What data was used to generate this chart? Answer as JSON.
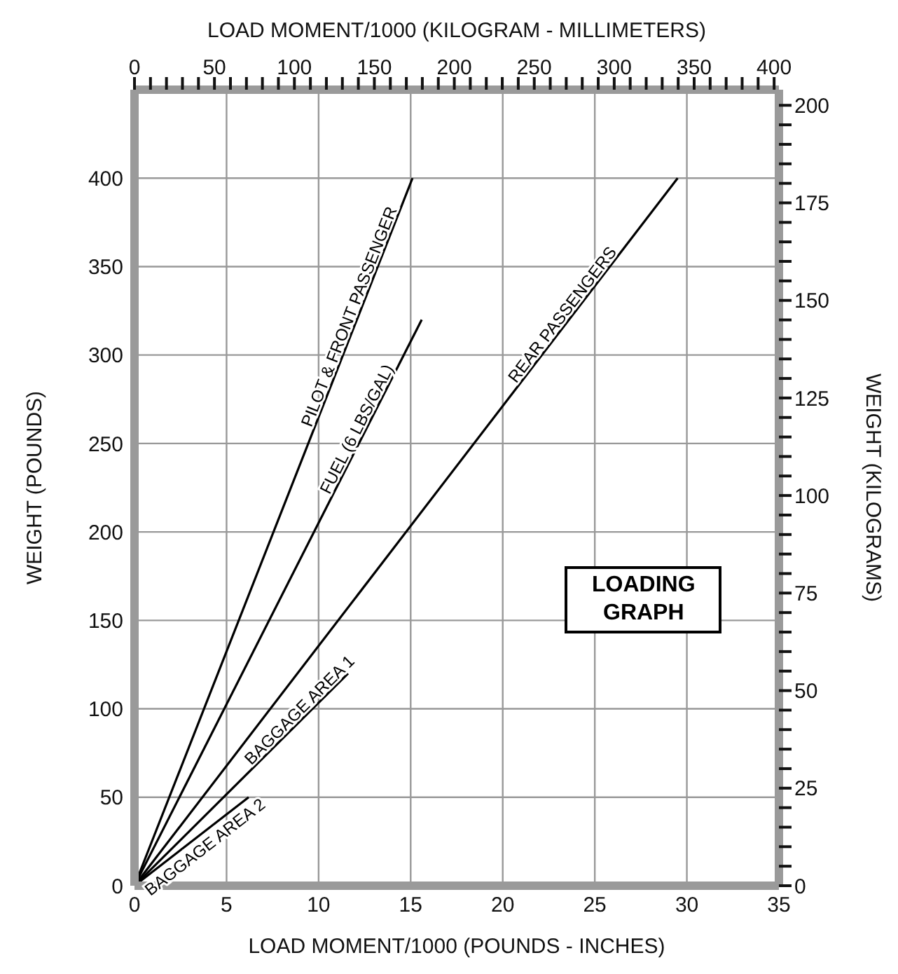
{
  "chart_data": {
    "type": "line",
    "xlabel": "LOAD MOMENT/1000  (POUNDS - INCHES)",
    "ylabel": "WEIGHT (POUNDS)",
    "x2label": "LOAD MOMENT/1000  (KILOGRAM - MILLIMETERS)",
    "y2label": "WEIGHT (KILOGRAMS)",
    "xlim": [
      0,
      35
    ],
    "xticks": [
      0,
      5,
      10,
      15,
      20,
      25,
      30,
      35
    ],
    "ylim": [
      0,
      450
    ],
    "yticks": [
      0,
      50,
      100,
      150,
      200,
      250,
      300,
      350,
      400
    ],
    "x2lim": [
      0,
      403
    ],
    "x2ticks": [
      0,
      {
        "value": 10,
        "label": null
      },
      {
        "value": 20,
        "label": null
      },
      {
        "value": 30,
        "label": null
      },
      {
        "value": 40,
        "label": null
      },
      50,
      {
        "value": 60,
        "label": null
      },
      {
        "value": 70,
        "label": null
      },
      {
        "value": 80,
        "label": null
      },
      {
        "value": 90,
        "label": null
      },
      100,
      {
        "value": 110,
        "label": null
      },
      {
        "value": 120,
        "label": null
      },
      {
        "value": 130,
        "label": null
      },
      {
        "value": 140,
        "label": null
      },
      150,
      {
        "value": 160,
        "label": null
      },
      {
        "value": 170,
        "label": null
      },
      {
        "value": 180,
        "label": null
      },
      {
        "value": 190,
        "label": null
      },
      200,
      {
        "value": 210,
        "label": null
      },
      {
        "value": 220,
        "label": null
      },
      {
        "value": 230,
        "label": null
      },
      {
        "value": 240,
        "label": null
      },
      250,
      {
        "value": 260,
        "label": null
      },
      {
        "value": 270,
        "label": null
      },
      {
        "value": 280,
        "label": null
      },
      {
        "value": 290,
        "label": null
      },
      300,
      {
        "value": 310,
        "label": null
      },
      {
        "value": 320,
        "label": null
      },
      {
        "value": 330,
        "label": null
      },
      {
        "value": 340,
        "label": null
      },
      350,
      {
        "value": 360,
        "label": null
      },
      {
        "value": 370,
        "label": null
      },
      {
        "value": 380,
        "label": null
      },
      {
        "value": 390,
        "label": null
      },
      400
    ],
    "y2lim": [
      0,
      204
    ],
    "y2ticks": [
      0,
      {
        "value": 5,
        "label": null
      },
      {
        "value": 10,
        "label": null
      },
      {
        "value": 15,
        "label": null
      },
      {
        "value": 20,
        "label": null
      },
      25,
      {
        "value": 30,
        "label": null
      },
      {
        "value": 35,
        "label": null
      },
      {
        "value": 40,
        "label": null
      },
      {
        "value": 45,
        "label": null
      },
      50,
      {
        "value": 55,
        "label": null
      },
      {
        "value": 60,
        "label": null
      },
      {
        "value": 65,
        "label": null
      },
      {
        "value": 70,
        "label": null
      },
      75,
      {
        "value": 80,
        "label": null
      },
      {
        "value": 85,
        "label": null
      },
      {
        "value": 90,
        "label": null
      },
      {
        "value": 95,
        "label": null
      },
      100,
      {
        "value": 105,
        "label": null
      },
      {
        "value": 110,
        "label": null
      },
      {
        "value": 115,
        "label": null
      },
      {
        "value": 120,
        "label": null
      },
      125,
      {
        "value": 130,
        "label": null
      },
      {
        "value": 135,
        "label": null
      },
      {
        "value": 140,
        "label": null
      },
      {
        "value": 145,
        "label": null
      },
      150,
      {
        "value": 155,
        "label": null
      },
      {
        "value": 160,
        "label": null
      },
      {
        "value": 165,
        "label": null
      },
      {
        "value": 170,
        "label": null
      },
      175,
      {
        "value": 180,
        "label": null
      },
      {
        "value": 185,
        "label": null
      },
      {
        "value": 190,
        "label": null
      },
      {
        "value": 195,
        "label": null
      },
      200
    ],
    "grid": true,
    "marker": "none",
    "line_style": "solid",
    "annotations": [
      "LOADING GRAPH"
    ],
    "series": [
      {
        "name": "PILOT & FRONT PASSENGER",
        "color": "#000000",
        "x": [
          0,
          15.1
        ],
        "values": [
          0,
          400
        ]
      },
      {
        "name": "FUEL (6 LBS/GAL)",
        "color": "#000000",
        "x": [
          0,
          15.6
        ],
        "values": [
          0,
          320
        ]
      },
      {
        "name": "REAR PASSENGERS",
        "color": "#000000",
        "x": [
          0,
          29.5
        ],
        "values": [
          0,
          400
        ]
      },
      {
        "name": "BAGGAGE AREA 1",
        "color": "#000000",
        "x": [
          0,
          11.6
        ],
        "values": [
          0,
          120
        ]
      },
      {
        "name": "BAGGAGE AREA 2",
        "color": "#000000",
        "x": [
          0,
          6.2
        ],
        "values": [
          0,
          50
        ]
      }
    ]
  }
}
